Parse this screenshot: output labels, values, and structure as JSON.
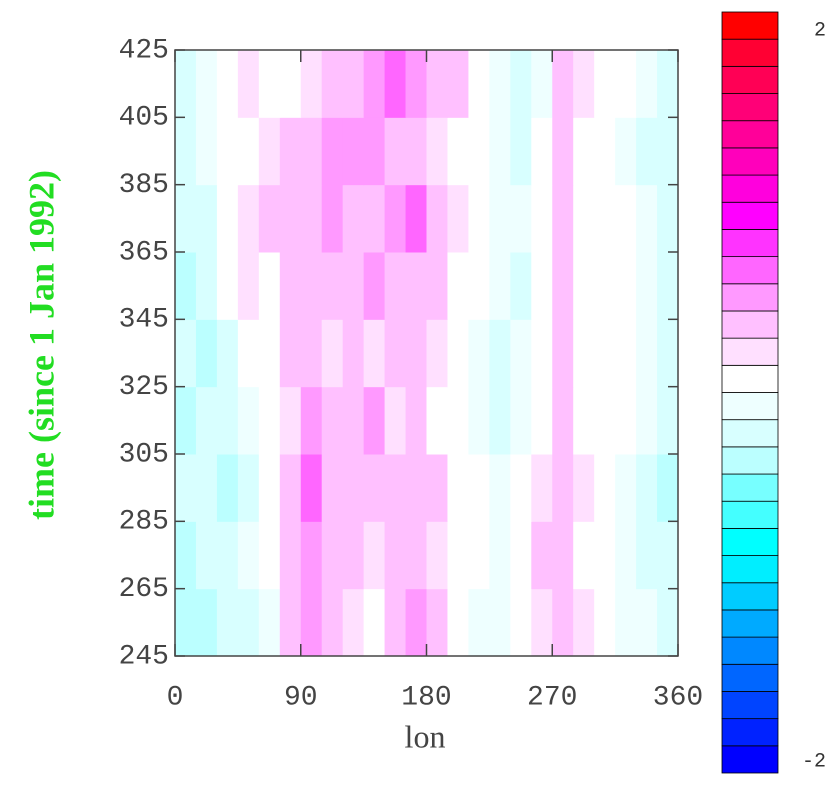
{
  "chart_data": {
    "type": "heatmap",
    "xlabel": "lon",
    "ylabel": "time (since 1 Jan 1992)",
    "xlim": [
      0,
      360
    ],
    "xticks": [
      0,
      90,
      180,
      270,
      360
    ],
    "ylim": [
      245,
      425
    ],
    "yticks": [
      245,
      265,
      285,
      305,
      325,
      345,
      365,
      385,
      405,
      425
    ],
    "xbins": [
      0,
      15,
      30,
      45,
      60,
      75,
      90,
      105,
      120,
      135,
      150,
      165,
      180,
      195,
      210,
      225,
      240,
      255,
      270,
      285,
      300,
      315,
      330,
      345,
      360
    ],
    "ybins": [
      245,
      265,
      285,
      305,
      325,
      345,
      365,
      385,
      405,
      425
    ],
    "values": [
      [
        -0.3,
        -0.3,
        -0.2,
        -0.2,
        -0.1,
        0.3,
        0.5,
        0.4,
        0.2,
        0.1,
        0.4,
        0.5,
        0.3,
        0.0,
        -0.1,
        -0.1,
        0.1,
        0.2,
        0.4,
        0.2,
        0.0,
        -0.1,
        -0.1,
        -0.2
      ],
      [
        -0.3,
        -0.2,
        -0.2,
        -0.1,
        0.0,
        0.4,
        0.5,
        0.3,
        0.3,
        0.2,
        0.4,
        0.3,
        0.2,
        0.1,
        0.0,
        -0.1,
        0.1,
        0.3,
        0.4,
        0.1,
        0.1,
        -0.1,
        -0.2,
        -0.2
      ],
      [
        -0.2,
        -0.2,
        -0.3,
        -0.2,
        0.0,
        0.3,
        0.6,
        0.4,
        0.3,
        0.4,
        0.3,
        0.4,
        0.3,
        0.1,
        0.0,
        -0.1,
        0.0,
        0.2,
        0.3,
        0.2,
        0.0,
        -0.1,
        -0.2,
        -0.3
      ],
      [
        -0.3,
        -0.2,
        -0.2,
        -0.1,
        0.1,
        0.2,
        0.5,
        0.3,
        0.4,
        0.5,
        0.2,
        0.3,
        0.1,
        0.0,
        -0.1,
        -0.2,
        -0.1,
        0.1,
        0.4,
        0.1,
        0.0,
        0.1,
        -0.1,
        -0.2
      ],
      [
        -0.2,
        -0.3,
        -0.2,
        0.0,
        0.1,
        0.3,
        0.4,
        0.2,
        0.4,
        0.2,
        0.3,
        0.3,
        0.2,
        0.1,
        -0.1,
        -0.2,
        -0.1,
        0.0,
        0.4,
        0.1,
        0.1,
        0.0,
        -0.1,
        -0.2
      ],
      [
        -0.3,
        -0.2,
        0.0,
        0.2,
        0.1,
        0.3,
        0.4,
        0.4,
        0.3,
        0.5,
        0.4,
        0.3,
        0.3,
        0.1,
        0.0,
        -0.1,
        -0.2,
        0.0,
        0.3,
        0.0,
        0.1,
        0.0,
        -0.1,
        -0.2
      ],
      [
        -0.2,
        -0.2,
        0.1,
        0.2,
        0.3,
        0.4,
        0.3,
        0.5,
        0.4,
        0.4,
        0.5,
        0.6,
        0.4,
        0.2,
        0.0,
        -0.1,
        -0.1,
        0.0,
        0.3,
        0.1,
        0.1,
        0.0,
        -0.1,
        -0.2
      ],
      [
        -0.2,
        -0.1,
        0.0,
        0.1,
        0.2,
        0.3,
        0.4,
        0.5,
        0.5,
        0.5,
        0.4,
        0.3,
        0.2,
        0.1,
        0.0,
        -0.1,
        -0.2,
        0.0,
        0.3,
        0.1,
        0.0,
        -0.1,
        -0.2,
        -0.2
      ],
      [
        -0.2,
        -0.1,
        0.1,
        0.2,
        0.1,
        0.1,
        0.2,
        0.3,
        0.4,
        0.5,
        0.6,
        0.5,
        0.4,
        0.3,
        0.1,
        -0.1,
        -0.2,
        -0.1,
        0.3,
        0.2,
        0.1,
        0.0,
        -0.1,
        -0.2
      ]
    ],
    "zlim": [
      -2,
      2
    ],
    "zticks": [
      2,
      -2
    ],
    "colors": [
      "#0000ff",
      "#0022ff",
      "#0044ff",
      "#0066ff",
      "#0088ff",
      "#00aaff",
      "#00ccff",
      "#00eeff",
      "#00ffff",
      "#44ffff",
      "#77ffff",
      "#bbffff",
      "#d8ffff",
      "#eeffff",
      "#ffffff",
      "#ffe0ff",
      "#ffc0ff",
      "#ff99ff",
      "#ff66ff",
      "#ff33ff",
      "#ff00ff",
      "#ff00dd",
      "#ff00bb",
      "#ff0099",
      "#ff0077",
      "#ff0055",
      "#ff0033",
      "#ff0000"
    ]
  }
}
